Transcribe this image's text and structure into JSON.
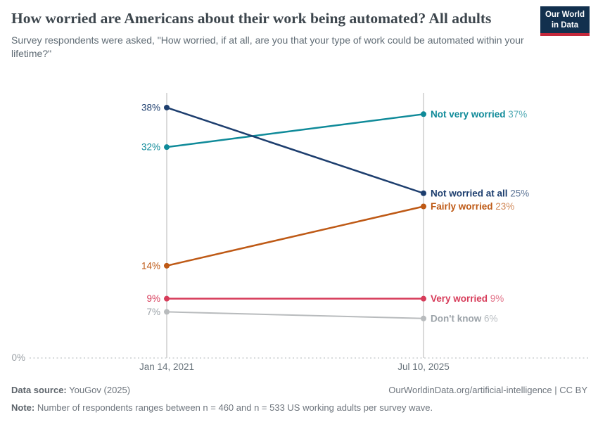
{
  "header": {
    "title": "How worried are Americans about their work being automated? All adults",
    "subtitle": "Survey respondents were asked, \"How worried, if at all, are you that your type of work could be automated within your lifetime?\"",
    "logo": {
      "line1": "Our World",
      "line2": "in Data",
      "bg_color": "#12304E",
      "accent_color": "#C4283B"
    }
  },
  "chart_data": {
    "type": "line",
    "subtype": "slope",
    "x": [
      "Jan 14, 2021",
      "Jul 10, 2025"
    ],
    "series": [
      {
        "name": "Not very worried",
        "values": [
          32,
          37
        ],
        "color": "#0F8A99"
      },
      {
        "name": "Not worried at all",
        "values": [
          38,
          25
        ],
        "color": "#1D3E6E"
      },
      {
        "name": "Fairly worried",
        "values": [
          14,
          23
        ],
        "color": "#BE5915"
      },
      {
        "name": "Very worried",
        "values": [
          9,
          9
        ],
        "color": "#D73C5A"
      },
      {
        "name": "Don't know",
        "values": [
          7,
          6
        ],
        "color": "#B8BBBD",
        "label_color": "#9CA3A9"
      }
    ],
    "value_suffix": "%",
    "baseline_label": "0%",
    "ylim": [
      0,
      40.5
    ],
    "grid": "baseline-dotted-only",
    "legend_position": "end-of-line-labels"
  },
  "footer": {
    "datasource_label": "Data source:",
    "datasource_value": " YouGov (2025)",
    "attribution": "OurWorldinData.org/artificial-intelligence | CC BY",
    "note_label": "Note:",
    "note_value": " Number of respondents ranges between n = 460 and n = 533 US working adults per survey wave."
  }
}
